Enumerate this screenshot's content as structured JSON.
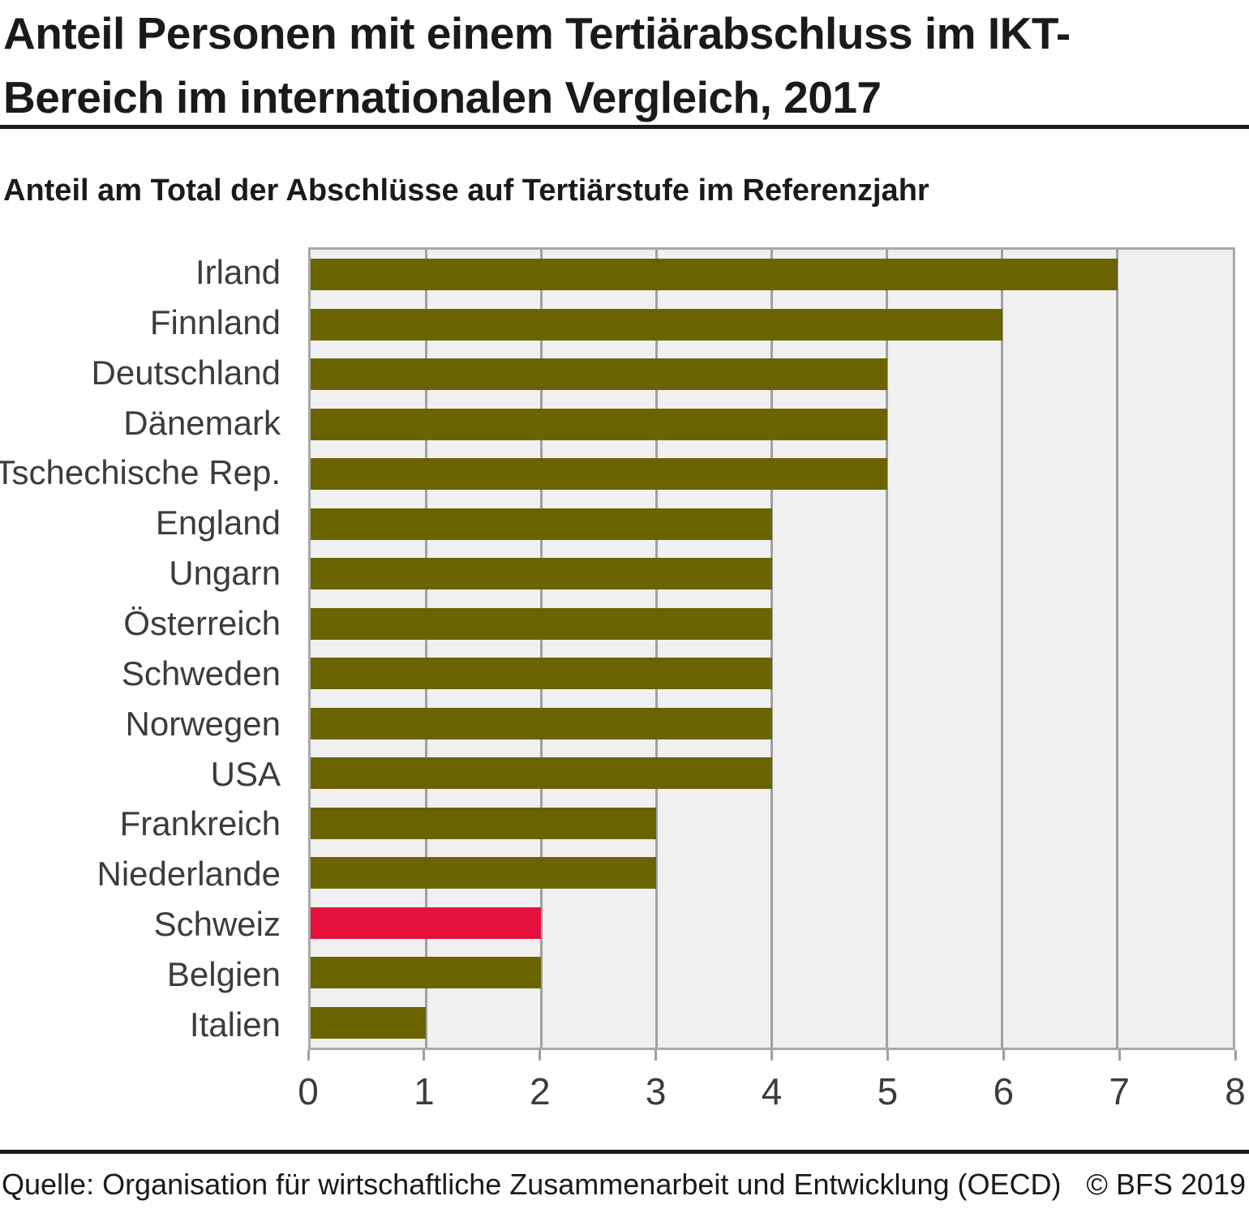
{
  "title": "Anteil Personen mit einem Tertiärabschluss im IKT-Bereich im internationalen Vergleich, 2017",
  "subtitle": "Anteil am Total der Abschlüsse auf Tertiärstufe im Referenzjahr",
  "footer": {
    "source": "Quelle: Organisation für wirtschaftliche Zusammenarbeit und Entwicklung (OECD)",
    "copyright": "© BFS 2019"
  },
  "chart_data": {
    "type": "bar",
    "orientation": "horizontal",
    "title": "Anteil Personen mit einem Tertiärabschluss im IKT-Bereich im internationalen Vergleich, 2017",
    "subtitle": "Anteil am Total der Abschlüsse auf Tertiärstufe im Referenzjahr",
    "categories": [
      "Irland",
      "Finnland",
      "Deutschland",
      "Dänemark",
      "Tschechische Rep.",
      "England",
      "Ungarn",
      "Österreich",
      "Schweden",
      "Norwegen",
      "USA",
      "Frankreich",
      "Niederlande",
      "Schweiz",
      "Belgien",
      "Italien"
    ],
    "values": [
      7,
      6,
      5,
      5,
      5,
      4,
      4,
      4,
      4,
      4,
      4,
      3,
      3,
      2,
      2,
      1
    ],
    "highlight_category": "Schweiz",
    "xlabel": "",
    "ylabel": "",
    "xlim": [
      0,
      8
    ],
    "x_ticks": [
      0,
      1,
      2,
      3,
      4,
      5,
      6,
      7,
      8
    ],
    "grid": true,
    "legend": false,
    "colors": {
      "bar": "#6a6400",
      "highlight": "#e5123d",
      "plot_background": "#f0f0f0",
      "gridline": "#a0a0a0",
      "plot_border": "#a8a8a8",
      "text": "#1a1a1a",
      "label_text": "#3c3c3c"
    }
  }
}
